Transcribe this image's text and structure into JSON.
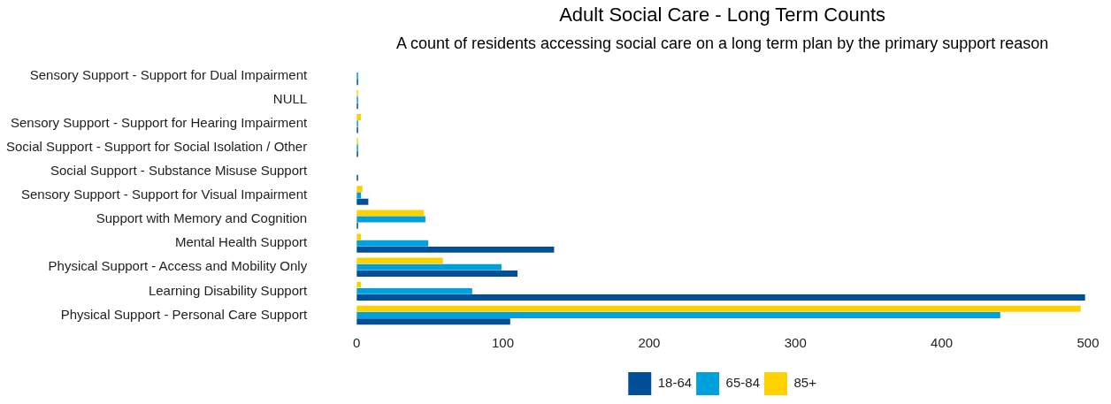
{
  "chart_data": {
    "type": "bar",
    "orientation": "horizontal",
    "title": "Adult Social Care - Long Term Counts",
    "subtitle": "A count of residents accessing social care on a long term plan by the primary support reason",
    "categories": [
      "Sensory Support - Support for Dual Impairment",
      "NULL",
      "Sensory Support - Support for Hearing Impairment",
      "Social Support - Support for Social Isolation / Other",
      "Social Support - Substance Misuse Support",
      "Sensory Support - Support for Visual Impairment",
      "Support with Memory and Cognition",
      "Mental Health Support",
      "Physical Support - Access and Mobility Only",
      "Learning Disability Support",
      "Physical Support - Personal Care Support"
    ],
    "series": [
      {
        "name": "18-64",
        "color": "#004f98",
        "values": [
          1,
          1,
          1,
          1,
          1,
          8,
          1,
          135,
          110,
          498,
          105
        ]
      },
      {
        "name": "65-84",
        "color": "#00a0dd",
        "values": [
          1,
          1,
          1,
          1,
          null,
          3,
          47,
          49,
          99,
          79,
          440
        ]
      },
      {
        "name": "85+",
        "color": "#ffd100",
        "values": [
          null,
          1,
          3,
          1,
          null,
          4,
          46,
          3,
          59,
          3,
          495
        ]
      }
    ],
    "xlim": [
      0,
      500
    ],
    "xticks": [
      0,
      100,
      200,
      300,
      400,
      500
    ],
    "legend": "bottom"
  }
}
